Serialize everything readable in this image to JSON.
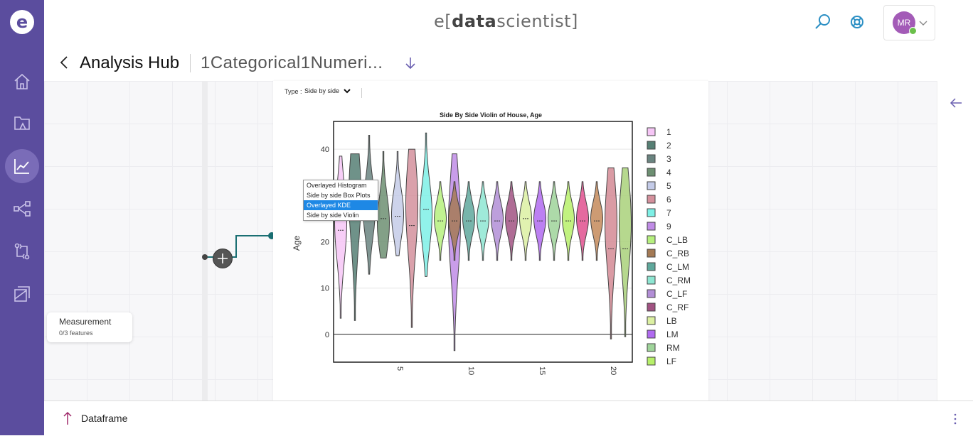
{
  "header": {
    "brand_prefix": "e[",
    "brand_bold": "data",
    "brand_suffix": "scientist]",
    "avatar_initials": "MR"
  },
  "title_bar": {
    "title": "Analysis Hub",
    "subtitle": "1Categorical1Numeri..."
  },
  "sidebar": {
    "items": [
      {
        "icon": "home-icon"
      },
      {
        "icon": "folder-icon"
      },
      {
        "icon": "chart-line-icon",
        "active": true
      },
      {
        "icon": "share-nodes-icon"
      },
      {
        "icon": "compare-icon"
      },
      {
        "icon": "layers-icon"
      }
    ]
  },
  "pipeline": {
    "node_title": "Measurement",
    "node_sub": "0/3 features"
  },
  "chart_panel": {
    "type_label": "Type :",
    "type_value": "Side by side",
    "dropdown_options": [
      "Overlayed Histogram",
      "Side by side Box Plots",
      "Overlayed KDE",
      "Side by side Violin"
    ],
    "dropdown_selected": 2
  },
  "bottom_bar": {
    "label": "Dataframe"
  },
  "chart_data": {
    "type": "violin",
    "title": "Side By Side Violin of House, Age",
    "xlabel": "",
    "ylabel": "Age",
    "ylim": [
      -6,
      46
    ],
    "yticks": [
      0,
      10,
      20,
      30,
      40
    ],
    "xticks": [
      5,
      10,
      15,
      20
    ],
    "xlim": [
      0.5,
      21.5
    ],
    "legend_position": "right",
    "series": [
      {
        "name": "1",
        "x": 1,
        "min": 3.5,
        "max": 38.5,
        "median": 22.5,
        "peak": 24,
        "color": "#f6c6f6"
      },
      {
        "name": "2",
        "x": 2,
        "min": 3,
        "max": 39,
        "median": 28,
        "peak": 30,
        "color": "#567f74"
      },
      {
        "name": "3",
        "x": 3,
        "min": 13,
        "max": 43,
        "median": 25,
        "peak": 27,
        "color": "#6a8480"
      },
      {
        "name": "4",
        "x": 4,
        "min": 16.5,
        "max": 39.5,
        "median": 25,
        "peak": 24,
        "color": "#6d8f72"
      },
      {
        "name": "5",
        "x": 5,
        "min": 17,
        "max": 39.5,
        "median": 25.5,
        "peak": 26,
        "color": "#c4cbe8"
      },
      {
        "name": "6",
        "x": 6,
        "min": 1.5,
        "max": 40,
        "median": 23.5,
        "peak": 28,
        "color": "#d4909c"
      },
      {
        "name": "7",
        "x": 7,
        "min": 12.5,
        "max": 43.5,
        "median": 27,
        "peak": 26,
        "color": "#7ef0e6"
      },
      {
        "name": "9",
        "x": 9,
        "min": -3.5,
        "max": 39,
        "median": 24.5,
        "peak": 24,
        "color": "#c08ce6"
      },
      {
        "name": "C_LB",
        "x": 8,
        "min": 16,
        "max": 33,
        "median": 24.5,
        "peak": 25,
        "color": "#b6f07e"
      },
      {
        "name": "C_RB",
        "x": 9,
        "min": 16,
        "max": 33,
        "median": 24.5,
        "peak": 25,
        "color": "#a47a55"
      },
      {
        "name": "C_LM",
        "x": 10,
        "min": 16,
        "max": 33,
        "median": 24.5,
        "peak": 25,
        "color": "#5fa89c"
      },
      {
        "name": "C_RM",
        "x": 11,
        "min": 16,
        "max": 33,
        "median": 24.5,
        "peak": 25,
        "color": "#8ee6d2"
      },
      {
        "name": "C_LF",
        "x": 12,
        "min": 16,
        "max": 33,
        "median": 24.5,
        "peak": 25,
        "color": "#b28ed6"
      },
      {
        "name": "C_RF",
        "x": 13,
        "min": 16,
        "max": 33,
        "median": 24.5,
        "peak": 25,
        "color": "#a15282"
      },
      {
        "name": "LB",
        "x": 14,
        "min": 16,
        "max": 33,
        "median": 25,
        "peak": 25,
        "color": "#dcf0a2"
      },
      {
        "name": "LM",
        "x": 15,
        "min": 16,
        "max": 33,
        "median": 24.5,
        "peak": 25,
        "color": "#b06af0"
      },
      {
        "name": "RM",
        "x": 16,
        "min": 16,
        "max": 33,
        "median": 24.5,
        "peak": 25,
        "color": "#9fd49a"
      },
      {
        "name": "LF",
        "x": 17,
        "min": 16,
        "max": 33,
        "median": 24.5,
        "peak": 25,
        "color": "#b7f06a"
      },
      {
        "name": "",
        "x": 18,
        "min": 16,
        "max": 33,
        "median": 24.5,
        "peak": 25,
        "color": "#e0508e"
      },
      {
        "name": "",
        "x": 19,
        "min": 16,
        "max": 33,
        "median": 24.5,
        "peak": 25,
        "color": "#c48a5a"
      },
      {
        "name": "",
        "x": 20,
        "min": -1,
        "max": 36,
        "median": 18.5,
        "peak": 24,
        "color": "#d48a94"
      },
      {
        "name": "",
        "x": 21,
        "min": -0.5,
        "max": 36,
        "median": 18.5,
        "peak": 24,
        "color": "#a9d17a"
      }
    ]
  }
}
